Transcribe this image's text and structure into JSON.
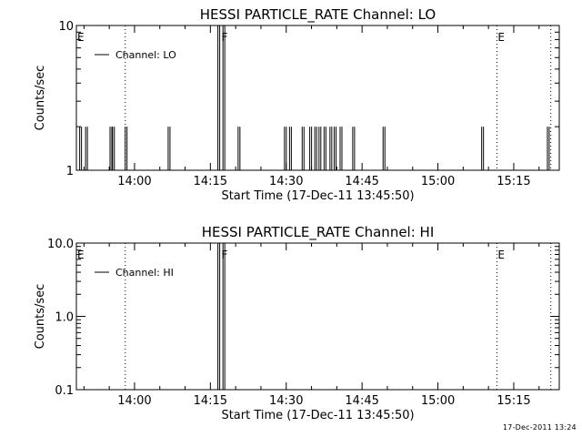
{
  "chart_data": [
    {
      "type": "line",
      "title": "HESSI PARTICLE_RATE Channel: LO",
      "xlabel": "Start Time (17-Dec-11 13:45:50)",
      "ylabel": "Counts/sec",
      "y_scale": "log",
      "ylim": [
        1,
        10
      ],
      "y_ticks": [
        {
          "value": 1,
          "label": "1"
        },
        {
          "value": 10,
          "label": "10"
        }
      ],
      "xlim": [
        "13:48:30",
        "15:24:00"
      ],
      "x_ticks": [
        "14:00",
        "14:15",
        "14:30",
        "14:45",
        "15:00",
        "15:15"
      ],
      "legend": {
        "position": "top-left",
        "entries": [
          "Channel: LO"
        ]
      },
      "series": [
        {
          "name": "Channel: LO",
          "baseline": 1,
          "spikes": [
            {
              "time": "13:49:20",
              "value": 2
            },
            {
              "time": "13:50:30",
              "value": 2
            },
            {
              "time": "13:55:20",
              "value": 2
            },
            {
              "time": "13:55:50",
              "value": 2
            },
            {
              "time": "13:58:20",
              "value": 2
            },
            {
              "time": "14:06:50",
              "value": 2
            },
            {
              "time": "14:16:40",
              "value": 10
            },
            {
              "time": "14:17:40",
              "value": 10
            },
            {
              "time": "14:20:40",
              "value": 2
            },
            {
              "time": "14:29:50",
              "value": 2
            },
            {
              "time": "14:30:50",
              "value": 2
            },
            {
              "time": "14:33:20",
              "value": 2
            },
            {
              "time": "14:34:50",
              "value": 2
            },
            {
              "time": "14:35:50",
              "value": 2
            },
            {
              "time": "14:36:40",
              "value": 2
            },
            {
              "time": "14:37:40",
              "value": 2
            },
            {
              "time": "14:38:50",
              "value": 2
            },
            {
              "time": "14:39:40",
              "value": 2
            },
            {
              "time": "14:40:50",
              "value": 2
            },
            {
              "time": "14:43:20",
              "value": 2
            },
            {
              "time": "14:49:20",
              "value": 2
            },
            {
              "time": "15:08:50",
              "value": 2
            },
            {
              "time": "15:21:50",
              "value": 2
            }
          ]
        }
      ],
      "annotations": [
        {
          "label": "E",
          "time": "13:48:30",
          "line": false
        },
        {
          "label": "",
          "time": "13:58:10",
          "line": true
        },
        {
          "label": "F",
          "time": "14:17:00",
          "line": false
        },
        {
          "label": "E",
          "time": "15:11:40",
          "line": true
        },
        {
          "label": "",
          "time": "15:22:20",
          "line": true
        }
      ]
    },
    {
      "type": "line",
      "title": "HESSI PARTICLE_RATE Channel: HI",
      "xlabel": "Start Time (17-Dec-11 13:45:50)",
      "ylabel": "Counts/sec",
      "y_scale": "log",
      "ylim": [
        0.1,
        10
      ],
      "y_ticks": [
        {
          "value": 0.1,
          "label": "0.1"
        },
        {
          "value": 1,
          "label": "1.0"
        },
        {
          "value": 10,
          "label": "10.0"
        }
      ],
      "xlim": [
        "13:48:30",
        "15:24:00"
      ],
      "x_ticks": [
        "14:00",
        "14:15",
        "14:30",
        "14:45",
        "15:00",
        "15:15"
      ],
      "legend": {
        "position": "top-left",
        "entries": [
          "Channel: HI"
        ]
      },
      "series": [
        {
          "name": "Channel: HI",
          "baseline": 0.1,
          "spikes": [
            {
              "time": "14:16:40",
              "value": 10
            },
            {
              "time": "14:17:40",
              "value": 10
            }
          ]
        }
      ],
      "annotations": [
        {
          "label": "E",
          "time": "13:48:30",
          "line": false
        },
        {
          "label": "",
          "time": "13:58:10",
          "line": true
        },
        {
          "label": "F",
          "time": "14:17:00",
          "line": false
        },
        {
          "label": "E",
          "time": "15:11:40",
          "line": true
        },
        {
          "label": "",
          "time": "15:22:20",
          "line": true
        }
      ]
    }
  ],
  "footer_timestamp": "17-Dec-2011 13:24"
}
